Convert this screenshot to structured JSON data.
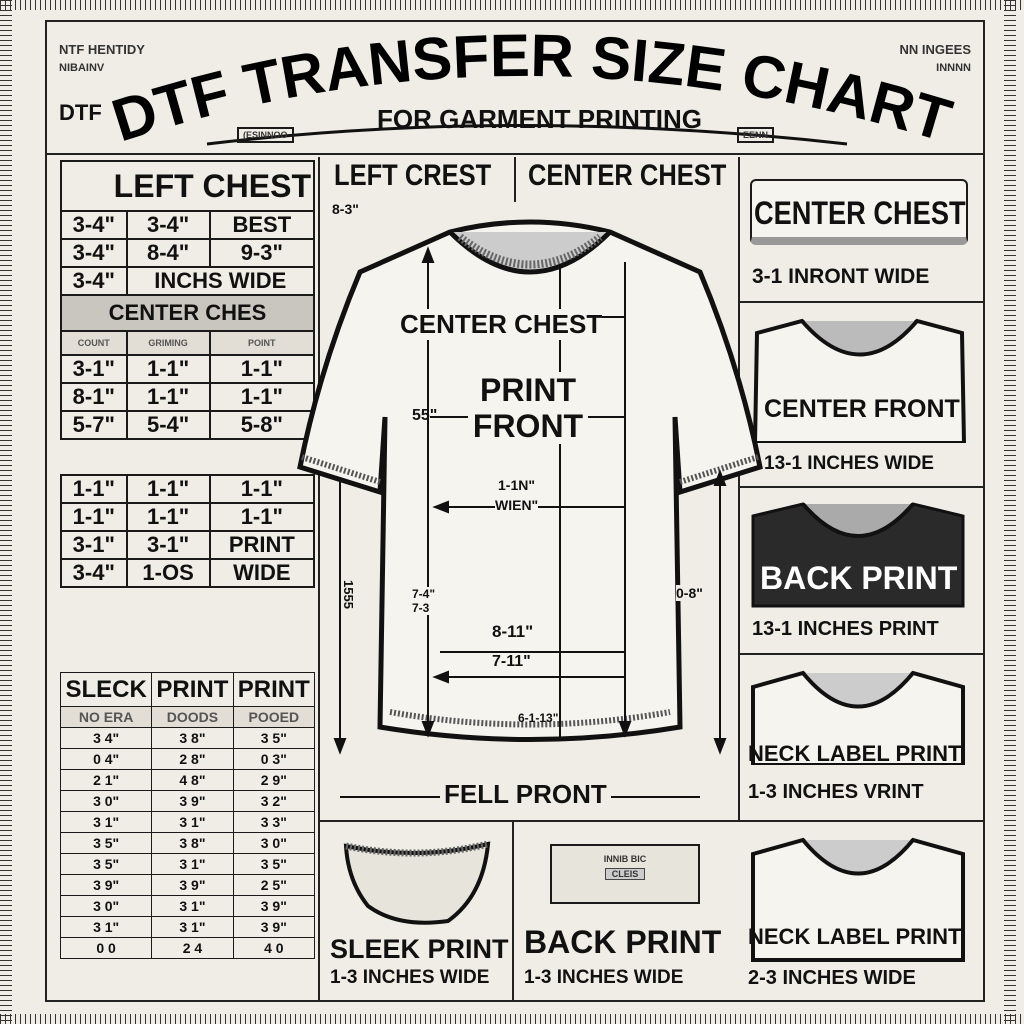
{
  "header": {
    "title": "DTF TRANSFER SIZE CHART",
    "subtitle": "FOR GARMENT PRINTING",
    "corner_left": "DTF",
    "garbled_left_1": "NTF HENTIDY",
    "garbled_left_2": "NIBAINV",
    "garbled_right_1": "NN INGEES",
    "garbled_right_2": "INNNN",
    "tag_left": "(ESINNOO",
    "tag_right": "EENN"
  },
  "left_table": {
    "title": "LEFT CHEST",
    "rows": [
      [
        "3-4\"",
        "3-4\"",
        "BEST"
      ],
      [
        "3-4\"",
        "8-4\"",
        "9-3\""
      ],
      [
        "3-4\"",
        "INCHS WIDE",
        ""
      ]
    ],
    "section2_title": "CENTER CHES",
    "section2_sub": [
      "COUNT",
      "GRIMING",
      "POINT"
    ],
    "rows2": [
      [
        "3-1\"",
        "1-1\"",
        "1-1\""
      ],
      [
        "8-1\"",
        "1-1\"",
        "1-1\""
      ],
      [
        "5-7\"",
        "5-4\"",
        "5-8\""
      ]
    ],
    "rows3": [
      [
        "1-1\"",
        "1-1\"",
        "1-1\""
      ],
      [
        "1-1\"",
        "1-1\"",
        "1-1\""
      ],
      [
        "3-1\"",
        "3-1\"",
        "PRINT"
      ],
      [
        "3-4\"",
        "1-OS",
        "WIDE"
      ]
    ]
  },
  "sleck_table": {
    "headers": [
      "SLECK",
      "PRINT",
      "PRINT"
    ],
    "sub": [
      "NO ERA",
      "DOODS",
      "POOED"
    ],
    "rows": [
      [
        "3 4\"",
        "3 8\"",
        "3 5\""
      ],
      [
        "0 4\"",
        "2 8\"",
        "0 3\""
      ],
      [
        "2 1\"",
        "4 8\"",
        "2 9\""
      ],
      [
        "3 0\"",
        "3 9\"",
        "3 2\""
      ],
      [
        "3 1\"",
        "3 1\"",
        "3 3\""
      ],
      [
        "3 5\"",
        "3 8\"",
        "3 0\""
      ],
      [
        "3 5\"",
        "3 1\"",
        "3 5\""
      ],
      [
        "3 9\"",
        "3 9\"",
        "2 5\""
      ],
      [
        "3 0\"",
        "3 1\"",
        "3 9\""
      ],
      [
        "3 1\"",
        "3 1\"",
        "3 9\""
      ],
      [
        "0 0",
        "2 4",
        "4 0"
      ]
    ]
  },
  "center": {
    "label_left": "LEFT CREST",
    "label_right": "CENTER CHEST",
    "dim_left": "8-3\"",
    "shirt_center_chest": "CENTER CHEST",
    "print_front": "PRINT FRONT",
    "dim_55": "55\"",
    "dim_wide_1": "1-1N\"",
    "dim_wide_2": "WIEN\"",
    "dim_side_left": "1555",
    "dim_mid_left": "7-4\" 7-3",
    "dim_8_11": "8-11\"",
    "dim_7_11": "7-11\"",
    "dim_bottom": "6-1-13\"",
    "dim_right": "0-8\"",
    "full_front": "FELL PRONT"
  },
  "bottom": [
    {
      "title": "SLEEK PRINT",
      "sub": "1-3 INCHES WIDE"
    },
    {
      "title": "BACK PRINT",
      "sub": "1-3 INCHES WIDE",
      "tag1": "INNIB BIC",
      "tag2": "CLEIS"
    }
  ],
  "right": [
    {
      "title": "CENTER CHEST",
      "sub": "3-1 INRONT WIDE"
    },
    {
      "title": "CENTER FRONT",
      "sub": "13-1 INCHES WIDE"
    },
    {
      "title": "BACK PRINT",
      "sub": "13-1 INCHES PRINT"
    },
    {
      "title": "NECK LABEL PRINT",
      "sub": "1-3 INCHES VRINT"
    },
    {
      "title": "NECK LABEL PRINT",
      "sub": "2-3 INCHES WIDE"
    }
  ]
}
